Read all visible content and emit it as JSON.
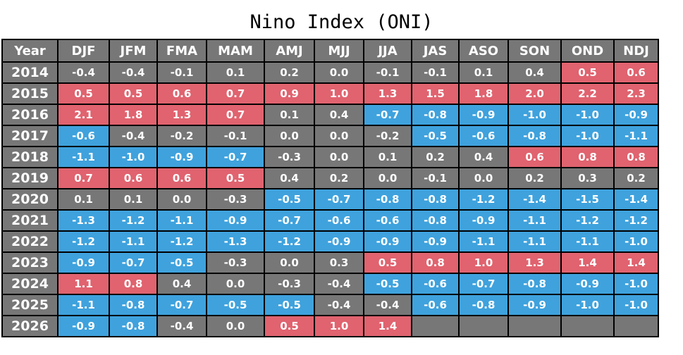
{
  "chart_data": {
    "type": "table",
    "title": "Nino Index (ONI)",
    "columns": [
      "Year",
      "DJF",
      "JFM",
      "FMA",
      "MAM",
      "AMJ",
      "MJJ",
      "JJA",
      "JAS",
      "ASO",
      "SON",
      "OND",
      "NDJ"
    ],
    "thresholds": {
      "warm": 0.5,
      "cool": -0.5
    },
    "colors": {
      "warm": "#e0636f",
      "cool": "#3fa2dd",
      "neutral": "#777777"
    },
    "rows": [
      {
        "year": "2014",
        "values": [
          "-0.4",
          "-0.4",
          "-0.1",
          "0.1",
          "0.2",
          "0.0",
          "-0.1",
          "-0.1",
          "0.1",
          "0.4",
          "0.5",
          "0.6"
        ]
      },
      {
        "year": "2015",
        "values": [
          "0.5",
          "0.5",
          "0.6",
          "0.7",
          "0.9",
          "1.0",
          "1.3",
          "1.5",
          "1.8",
          "2.0",
          "2.2",
          "2.3"
        ]
      },
      {
        "year": "2016",
        "values": [
          "2.1",
          "1.8",
          "1.3",
          "0.7",
          "0.1",
          "0.4",
          "-0.7",
          "-0.8",
          "-0.9",
          "-1.0",
          "-1.0",
          "-0.9"
        ]
      },
      {
        "year": "2017",
        "values": [
          "-0.6",
          "-0.4",
          "-0.2",
          "-0.1",
          "0.0",
          "0.0",
          "-0.2",
          "-0.5",
          "-0.6",
          "-0.8",
          "-1.0",
          "-1.1"
        ]
      },
      {
        "year": "2018",
        "values": [
          "-1.1",
          "-1.0",
          "-0.9",
          "-0.7",
          "-0.3",
          "0.0",
          "0.1",
          "0.2",
          "0.4",
          "0.6",
          "0.8",
          "0.8"
        ]
      },
      {
        "year": "2019",
        "values": [
          "0.7",
          "0.6",
          "0.6",
          "0.5",
          "0.4",
          "0.2",
          "0.0",
          "-0.1",
          "0.0",
          "0.2",
          "0.3",
          "0.2"
        ]
      },
      {
        "year": "2020",
        "values": [
          "0.1",
          "0.1",
          "0.0",
          "-0.3",
          "-0.5",
          "-0.7",
          "-0.8",
          "-0.8",
          "-1.2",
          "-1.4",
          "-1.5",
          "-1.4"
        ]
      },
      {
        "year": "2021",
        "values": [
          "-1.3",
          "-1.2",
          "-1.1",
          "-0.9",
          "-0.7",
          "-0.6",
          "-0.6",
          "-0.8",
          "-0.9",
          "-1.1",
          "-1.2",
          "-1.2"
        ]
      },
      {
        "year": "2022",
        "values": [
          "-1.2",
          "-1.1",
          "-1.2",
          "-1.3",
          "-1.2",
          "-0.9",
          "-0.9",
          "-0.9",
          "-1.1",
          "-1.1",
          "-1.1",
          "-1.0"
        ]
      },
      {
        "year": "2023",
        "values": [
          "-0.9",
          "-0.7",
          "-0.5",
          "-0.3",
          "0.0",
          "0.3",
          "0.5",
          "0.8",
          "1.0",
          "1.3",
          "1.4",
          "1.4"
        ]
      },
      {
        "year": "2024",
        "values": [
          "1.1",
          "0.8",
          "0.4",
          "0.0",
          "-0.3",
          "-0.4",
          "-0.5",
          "-0.6",
          "-0.7",
          "-0.8",
          "-0.9",
          "-1.0"
        ]
      },
      {
        "year": "2025",
        "values": [
          "-1.1",
          "-0.8",
          "-0.7",
          "-0.5",
          "-0.5",
          "-0.4",
          "-0.4",
          "-0.6",
          "-0.8",
          "-0.9",
          "-1.0",
          "-1.0"
        ]
      },
      {
        "year": "2026",
        "values": [
          "-0.9",
          "-0.8",
          "-0.4",
          "0.0",
          "0.5",
          "1.0",
          "1.4",
          "",
          "",
          "",
          "",
          ""
        ]
      }
    ]
  }
}
